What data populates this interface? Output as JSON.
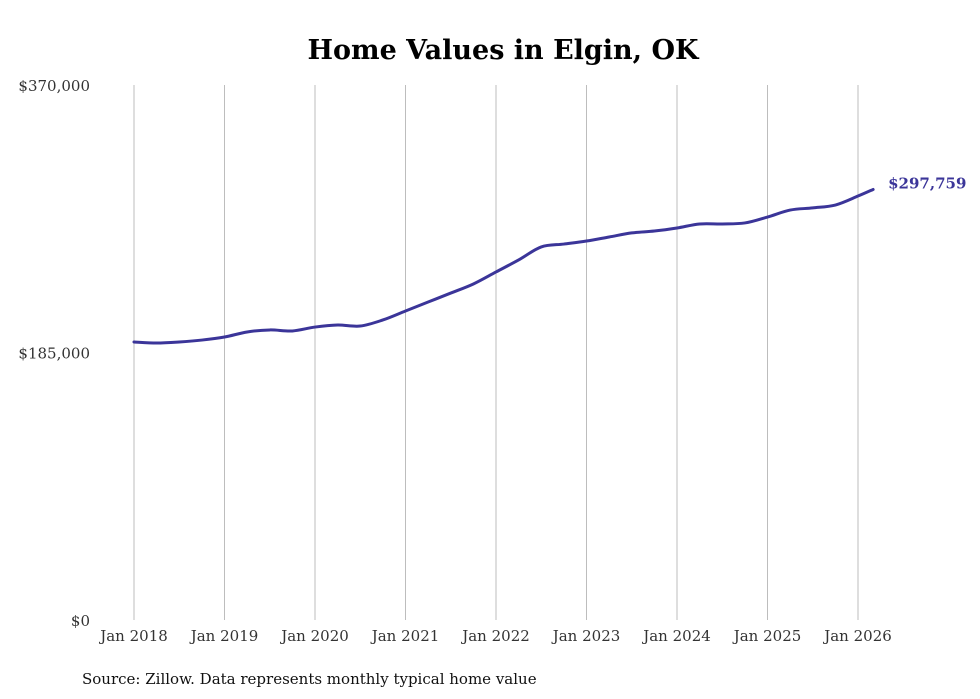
{
  "chart_data": {
    "type": "line",
    "title": "Home Values in Elgin, OK",
    "xlabel": "",
    "ylabel": "",
    "source": "Source: Zillow. Data represents monthly typical home value",
    "ylim": [
      0,
      370000
    ],
    "y_ticks": [
      {
        "value": 0,
        "label": "$0"
      },
      {
        "value": 185000,
        "label": "$185,000"
      },
      {
        "value": 370000,
        "label": "$370,000"
      }
    ],
    "x_ticks": [
      {
        "value": 2018,
        "label": "Jan 2018"
      },
      {
        "value": 2019,
        "label": "Jan 2019"
      },
      {
        "value": 2020,
        "label": "Jan 2020"
      },
      {
        "value": 2021,
        "label": "Jan 2021"
      },
      {
        "value": 2022,
        "label": "Jan 2022"
      },
      {
        "value": 2023,
        "label": "Jan 2023"
      },
      {
        "value": 2024,
        "label": "Jan 2024"
      },
      {
        "value": 2025,
        "label": "Jan 2025"
      },
      {
        "value": 2026,
        "label": "Jan 2026"
      }
    ],
    "grid": "vertical",
    "line_color": "#3b3599",
    "end_label": "$297,759",
    "series": [
      {
        "name": "Typical home value",
        "x": [
          2018,
          2018.25,
          2018.5,
          2018.75,
          2019,
          2019.25,
          2019.5,
          2019.75,
          2020,
          2020.25,
          2020.5,
          2020.75,
          2021,
          2021.25,
          2021.5,
          2021.75,
          2022,
          2022.25,
          2022.5,
          2022.75,
          2023,
          2023.25,
          2023.5,
          2023.75,
          2024,
          2024.25,
          2024.5,
          2024.75,
          2025,
          2025.25,
          2025.5,
          2025.75,
          2026,
          2026.167
        ],
        "values": [
          192300,
          191600,
          192300,
          193600,
          195700,
          199200,
          200600,
          199900,
          202600,
          204000,
          203300,
          207500,
          213700,
          219900,
          226100,
          232400,
          240700,
          249000,
          258000,
          260000,
          262100,
          264900,
          267700,
          269000,
          271100,
          273900,
          273900,
          274600,
          278700,
          283500,
          285000,
          287000,
          293200,
          297759
        ]
      }
    ]
  }
}
